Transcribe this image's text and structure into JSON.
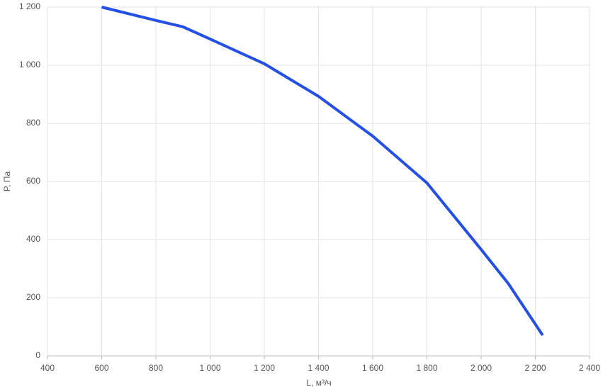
{
  "chart_data": {
    "type": "line",
    "x_label": "L, м³/ч",
    "y_label": "P, Па",
    "x": [
      600,
      800,
      900,
      1000,
      1200,
      1400,
      1600,
      1800,
      2000,
      2100,
      2227
    ],
    "series": [
      {
        "name": "P",
        "color": "#2450e6",
        "values": [
          1200,
          1154,
          1132,
          1090,
          1005,
          893,
          756,
          595,
          366,
          249,
          71
        ]
      }
    ],
    "xlim": [
      400,
      2400
    ],
    "xticks": [
      400,
      600,
      800,
      {
        "value": 1000,
        "label": "1 000"
      },
      {
        "value": 1200,
        "label": "1 200"
      },
      {
        "value": 1400,
        "label": "1 400"
      },
      {
        "value": 1600,
        "label": "1 600"
      },
      {
        "value": 1800,
        "label": "1 800"
      },
      {
        "value": 2000,
        "label": "2 000"
      },
      {
        "value": 2200,
        "label": "2 200"
      },
      {
        "value": 2400,
        "label": "2 400"
      }
    ],
    "ylim": [
      0,
      1200
    ],
    "yticks": [
      0,
      200,
      400,
      600,
      800,
      {
        "value": 1000,
        "label": "1 000"
      },
      {
        "value": 1200,
        "label": "1 200"
      }
    ],
    "grid": true
  }
}
